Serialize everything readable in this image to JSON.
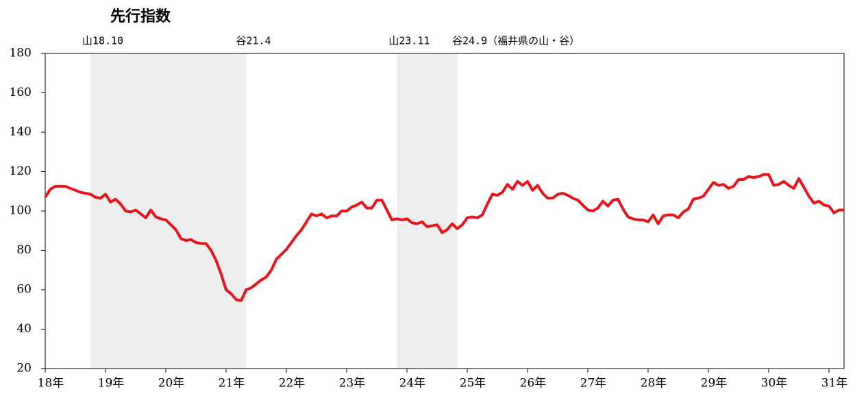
{
  "chart_data": {
    "type": "line",
    "title": "先行指数",
    "categories": [
      "18年",
      null,
      null,
      null,
      null,
      null,
      null,
      null,
      null,
      null,
      null,
      null,
      "19年",
      null,
      null,
      null,
      null,
      null,
      null,
      null,
      null,
      null,
      null,
      null,
      "20年",
      null,
      null,
      null,
      null,
      null,
      null,
      null,
      null,
      null,
      null,
      null,
      "21年",
      null,
      null,
      null,
      null,
      null,
      null,
      null,
      null,
      null,
      null,
      null,
      "22年",
      null,
      null,
      null,
      null,
      null,
      null,
      null,
      null,
      null,
      null,
      null,
      "23年",
      null,
      null,
      null,
      null,
      null,
      null,
      null,
      null,
      null,
      null,
      null,
      "24年",
      null,
      null,
      null,
      null,
      null,
      null,
      null,
      null,
      null,
      null,
      null,
      "25年",
      null,
      null,
      null,
      null,
      null,
      null,
      null,
      null,
      null,
      null,
      null,
      "26年",
      null,
      null,
      null,
      null,
      null,
      null,
      null,
      null,
      null,
      null,
      null,
      "27年",
      null,
      null,
      null,
      null,
      null,
      null,
      null,
      null,
      null,
      null,
      null,
      "28年",
      null,
      null,
      null,
      null,
      null,
      null,
      null,
      null,
      null,
      null,
      null,
      "29年",
      null,
      null,
      null,
      null,
      null,
      null,
      null,
      null,
      null,
      null,
      null,
      "30年",
      null,
      null,
      null,
      null,
      null,
      null,
      null,
      null,
      null,
      null,
      null,
      "31年",
      null,
      null,
      null
    ],
    "values": [
      107,
      111,
      112.5,
      112.5,
      112.5,
      111.5,
      110.5,
      109.5,
      109,
      108.5,
      107,
      106.5,
      108.5,
      104.5,
      106,
      103.5,
      100,
      99.5,
      100.5,
      98.5,
      96.5,
      100.5,
      97,
      96,
      95.5,
      93,
      90.5,
      86,
      85,
      85.5,
      84,
      83.5,
      83.5,
      80,
      75,
      68,
      60,
      58,
      55,
      54.5,
      60,
      61,
      63,
      65,
      66.5,
      70,
      75.5,
      78,
      80.5,
      84,
      87.5,
      90.5,
      94.5,
      98.5,
      97.5,
      98.5,
      96.5,
      97.5,
      97.5,
      100,
      100,
      102,
      103,
      104.5,
      101.5,
      101.5,
      105.5,
      105.5,
      100.5,
      95.5,
      96,
      95.5,
      96,
      94,
      93.5,
      94.5,
      92,
      92.5,
      93,
      89,
      90.5,
      93.5,
      91,
      93,
      96.5,
      97,
      96.5,
      98,
      103.5,
      108.5,
      108,
      109.5,
      113.5,
      111,
      115,
      113,
      115,
      110.5,
      113,
      109,
      106.5,
      106.5,
      108.5,
      109,
      108,
      106.5,
      105.5,
      103,
      100.5,
      100,
      101.5,
      105,
      102.5,
      105.5,
      106,
      101,
      97,
      96,
      95.5,
      95.5,
      94.5,
      98,
      93.5,
      97.5,
      98,
      98,
      96.5,
      99.5,
      101,
      106,
      106.5,
      107.5,
      111,
      114.5,
      113,
      113.5,
      111.5,
      112.5,
      116,
      116,
      117.5,
      117,
      117.5,
      118.5,
      118.5,
      113,
      113.5,
      115,
      113,
      111.5,
      116.5,
      112,
      107.5,
      104,
      105,
      103,
      102.5,
      99,
      100.5,
      100.5
    ],
    "color": "#e8141c",
    "ylim": [
      20,
      180
    ],
    "yticks": [
      20,
      40,
      60,
      80,
      100,
      120,
      140,
      160,
      180
    ],
    "annotations": [
      {
        "text": "山18.10",
        "x": 9
      },
      {
        "text": "谷21.4",
        "x": 39
      },
      {
        "text": "山23.11",
        "x": 70
      },
      {
        "text": "谷24.9（福井県の山・谷）",
        "x": 81
      }
    ],
    "shade_color": "#eeeeee"
  }
}
